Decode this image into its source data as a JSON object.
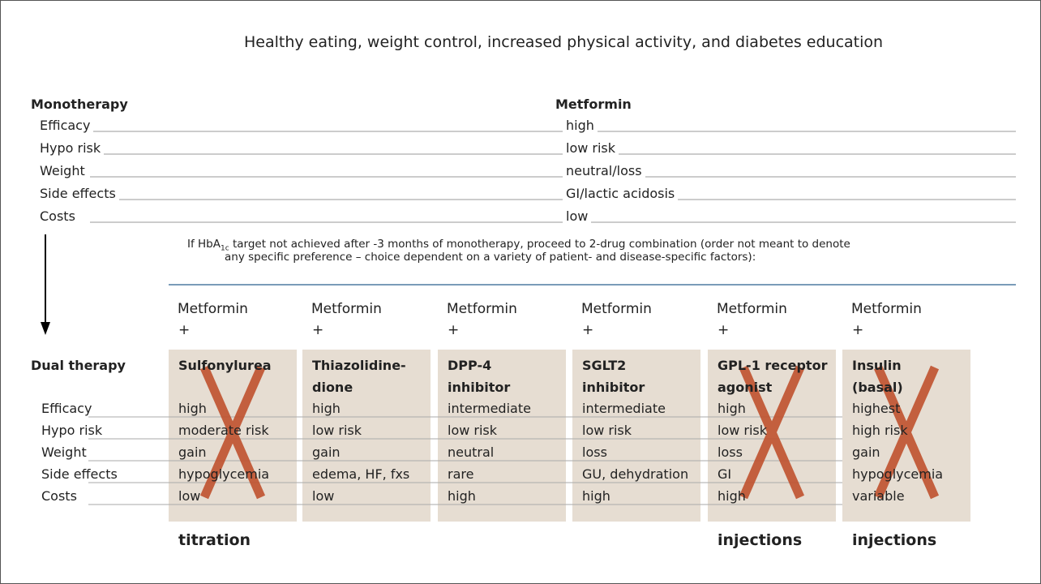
{
  "header": {
    "title": "Healthy eating, weight control, increased physical activity, and diabetes education"
  },
  "row_labels": [
    "Efficacy",
    "Hypo risk",
    "Weight",
    "Side effects",
    "Costs"
  ],
  "mono": {
    "label": "Monotherapy",
    "drug": "Metformin",
    "values": [
      "high",
      "low risk",
      "neutral/loss",
      "GI/lactic acidosis",
      "low"
    ]
  },
  "note": {
    "prefix": "If HbA",
    "subscript": "1c",
    "line1": " target not achieved after -3 months of monotherapy, proceed to 2-drug combination (order not meant to denote",
    "line2": "any specific preference – choice dependent on a variety of patient- and disease-specific factors):"
  },
  "dual": {
    "label": "Dual therapy",
    "base": "Metformin",
    "plus": "+",
    "cross_color": "#c0522e",
    "box_color": "#e6ddd2",
    "columns": [
      {
        "name": [
          "Sulfonylurea"
        ],
        "values": [
          "high",
          "moderate risk",
          "gain",
          "hypoglycemia",
          "low"
        ],
        "footer": "titration",
        "crossed": true
      },
      {
        "name": [
          "Thiazolidine-",
          "dione"
        ],
        "values": [
          "high",
          "low risk",
          "gain",
          "edema, HF, fxs",
          "low"
        ],
        "crossed": false
      },
      {
        "name": [
          "DPP-4",
          "inhibitor"
        ],
        "values": [
          "intermediate",
          "low risk",
          "neutral",
          "rare",
          "high"
        ],
        "crossed": false
      },
      {
        "name": [
          "SGLT2",
          "inhibitor"
        ],
        "values": [
          "intermediate",
          "low risk",
          "loss",
          "GU, dehydration",
          "high"
        ],
        "crossed": false
      },
      {
        "name": [
          "GPL-1 receptor",
          "agonist"
        ],
        "values": [
          "high",
          "low risk",
          "loss",
          "GI",
          "high"
        ],
        "footer": "injections",
        "crossed": true
      },
      {
        "name": [
          "Insulin",
          "(basal)"
        ],
        "values": [
          "highest",
          "high risk",
          "gain",
          "hypoglycemia",
          "variable"
        ],
        "footer": "injections",
        "crossed": true
      }
    ]
  }
}
